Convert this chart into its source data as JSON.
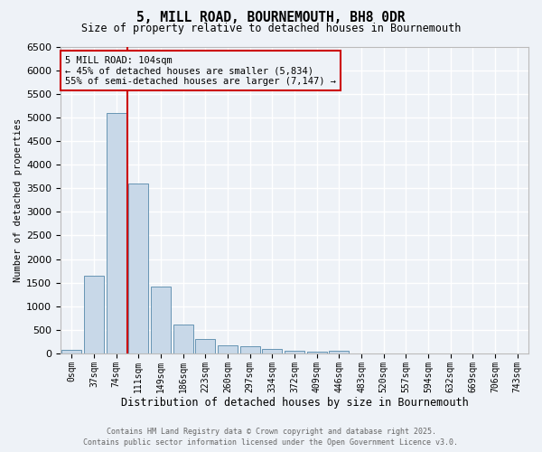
{
  "title": "5, MILL ROAD, BOURNEMOUTH, BH8 0DR",
  "subtitle": "Size of property relative to detached houses in Bournemouth",
  "xlabel": "Distribution of detached houses by size in Bournemouth",
  "ylabel": "Number of detached properties",
  "categories": [
    "0sqm",
    "37sqm",
    "74sqm",
    "111sqm",
    "149sqm",
    "186sqm",
    "223sqm",
    "260sqm",
    "297sqm",
    "334sqm",
    "372sqm",
    "409sqm",
    "446sqm",
    "483sqm",
    "520sqm",
    "557sqm",
    "594sqm",
    "632sqm",
    "669sqm",
    "706sqm",
    "743sqm"
  ],
  "values": [
    75,
    1650,
    5100,
    3600,
    1420,
    610,
    310,
    165,
    150,
    100,
    50,
    30,
    65,
    0,
    0,
    0,
    0,
    0,
    0,
    0,
    0
  ],
  "bar_color": "#c8d8e8",
  "bar_edge_color": "#5588aa",
  "vline_x": 3,
  "vline_color": "#cc0000",
  "annotation_title": "5 MILL ROAD: 104sqm",
  "annotation_line1": "← 45% of detached houses are smaller (5,834)",
  "annotation_line2": "55% of semi-detached houses are larger (7,147) →",
  "annotation_box_color": "#cc0000",
  "ylim": [
    0,
    6500
  ],
  "yticks": [
    0,
    500,
    1000,
    1500,
    2000,
    2500,
    3000,
    3500,
    4000,
    4500,
    5000,
    5500,
    6000,
    6500
  ],
  "footnote1": "Contains HM Land Registry data © Crown copyright and database right 2025.",
  "footnote2": "Contains public sector information licensed under the Open Government Licence v3.0.",
  "background_color": "#eef2f7",
  "grid_color": "#ffffff"
}
